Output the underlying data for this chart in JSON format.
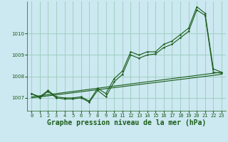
{
  "title": "Graphe pression niveau de la mer (hPa)",
  "background_color": "#cce8f0",
  "grid_color": "#99ccbb",
  "line_color": "#1a5c1a",
  "xlim": [
    -0.5,
    23.5
  ],
  "ylim": [
    1006.4,
    1011.5
  ],
  "yticks": [
    1007,
    1008,
    1009,
    1010
  ],
  "xticks": [
    0,
    1,
    2,
    3,
    4,
    5,
    6,
    7,
    8,
    9,
    10,
    11,
    12,
    13,
    14,
    15,
    16,
    17,
    18,
    19,
    20,
    21,
    22,
    23
  ],
  "x": [
    0,
    1,
    2,
    3,
    4,
    5,
    6,
    7,
    8,
    9,
    10,
    11,
    12,
    13,
    14,
    15,
    16,
    17,
    18,
    19,
    20,
    21,
    22,
    23
  ],
  "line1": [
    1007.2,
    1007.0,
    1007.3,
    1007.0,
    1006.95,
    1006.95,
    1007.0,
    1006.8,
    1007.35,
    1007.05,
    1007.75,
    1008.1,
    1009.0,
    1008.85,
    1009.0,
    1009.05,
    1009.35,
    1009.5,
    1009.8,
    1010.1,
    1011.1,
    1010.85,
    1008.2,
    1008.15
  ],
  "line2": [
    1007.2,
    1007.05,
    1007.35,
    1007.05,
    1007.0,
    1007.0,
    1007.05,
    1006.85,
    1007.45,
    1007.2,
    1007.9,
    1008.25,
    1009.15,
    1009.0,
    1009.15,
    1009.15,
    1009.5,
    1009.65,
    1009.95,
    1010.25,
    1011.25,
    1010.95,
    1008.35,
    1008.2
  ],
  "line3_x": [
    0,
    23
  ],
  "line3_y": [
    1007.0,
    1008.1
  ],
  "line4_x": [
    0,
    23
  ],
  "line4_y": [
    1007.05,
    1008.2
  ],
  "marker_size": 3.0,
  "linewidth": 0.8,
  "title_fontsize": 7.0,
  "tick_fontsize": 5.0
}
